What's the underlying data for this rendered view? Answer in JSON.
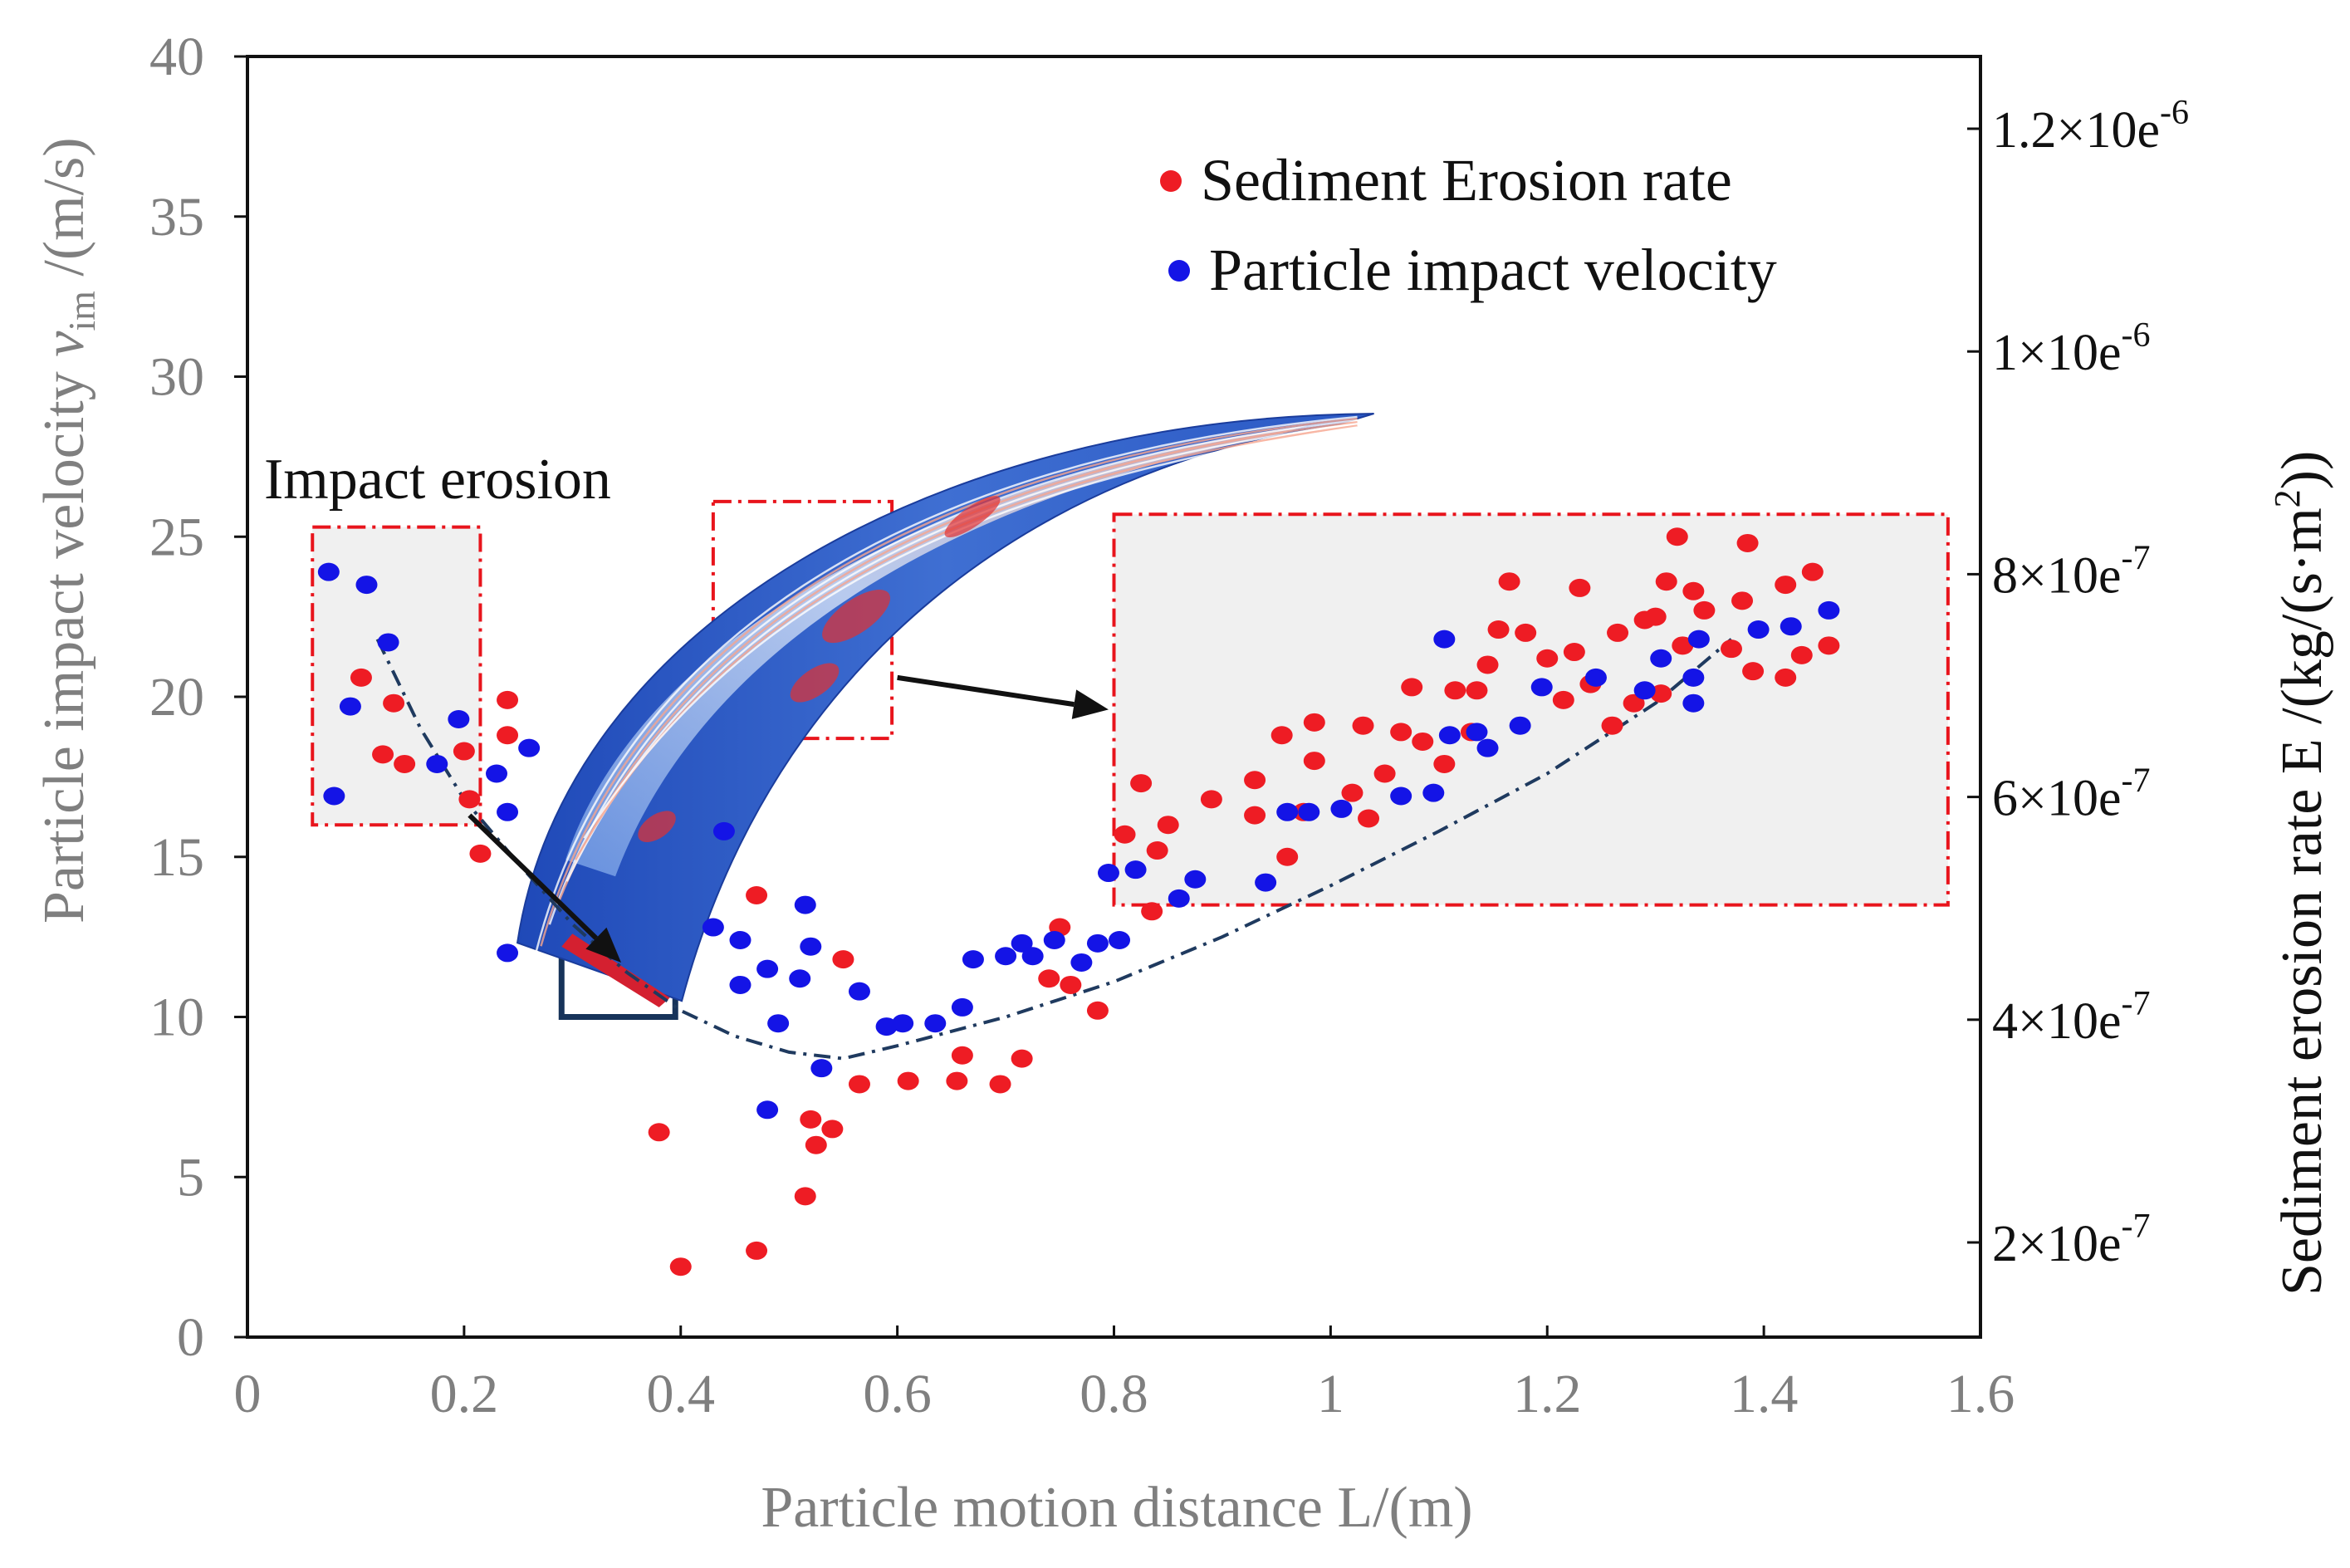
{
  "chart_data": {
    "type": "scatter",
    "xlabel": "Particle motion distance L/(m)",
    "ylabel_main": "Particle impact velocity ",
    "ylabel_symbol": "v",
    "ylabel_subscript": "im",
    "ylabel_unit": " /(m/s)",
    "y2label_main": "Sediment erosion rate E /(kg/(s·m",
    "y2label_sup": "2",
    "y2label_end": "))",
    "xlim": [
      0,
      1.6
    ],
    "ylim": [
      0,
      40
    ],
    "y2lim": [
      1.2e-07,
      1.3e-06
    ],
    "x_ticks": [
      "0",
      "0.2",
      "0.4",
      "0.6",
      "0.8",
      "1",
      "1.2",
      "1.4",
      "1.6"
    ],
    "y_ticks": [
      "0",
      "5",
      "10",
      "15",
      "20",
      "25",
      "30",
      "35",
      "40"
    ],
    "y2_ticks": [
      {
        "base": "2×10e",
        "exp": "-7"
      },
      {
        "base": "4×10e",
        "exp": "-7"
      },
      {
        "base": "6×10e",
        "exp": "-7"
      },
      {
        "base": "8×10e",
        "exp": "-7"
      },
      {
        "base": "1×10e",
        "exp": "-6"
      },
      {
        "base": "1.2×10e",
        "exp": "-6"
      }
    ],
    "y2_tick_values": [
      2e-07,
      4e-07,
      6e-07,
      8e-07,
      1e-06,
      1.2e-06
    ],
    "series": [
      {
        "name": "Sediment Erosion rate",
        "color": "#ee1c24",
        "points": [
          [
            0.105,
            20.6
          ],
          [
            0.135,
            19.8
          ],
          [
            0.125,
            18.2
          ],
          [
            0.145,
            17.9
          ],
          [
            0.2,
            18.3
          ],
          [
            0.205,
            16.8
          ],
          [
            0.215,
            15.1
          ],
          [
            0.24,
            19.9
          ],
          [
            0.24,
            18.8
          ],
          [
            0.38,
            6.4
          ],
          [
            0.4,
            2.2
          ],
          [
            0.47,
            13.8
          ],
          [
            0.47,
            2.7
          ],
          [
            0.515,
            4.4
          ],
          [
            0.52,
            6.8
          ],
          [
            0.525,
            6.0
          ],
          [
            0.54,
            6.5
          ],
          [
            0.55,
            11.8
          ],
          [
            0.565,
            7.9
          ],
          [
            0.61,
            8.0
          ],
          [
            0.655,
            8.0
          ],
          [
            0.66,
            8.8
          ],
          [
            0.695,
            7.9
          ],
          [
            0.715,
            8.7
          ],
          [
            0.74,
            11.2
          ],
          [
            0.75,
            12.8
          ],
          [
            0.76,
            11.0
          ],
          [
            0.785,
            10.2
          ],
          [
            0.81,
            15.7
          ],
          [
            0.825,
            17.3
          ],
          [
            0.835,
            13.3
          ],
          [
            0.84,
            15.2
          ],
          [
            0.85,
            16.0
          ],
          [
            0.89,
            16.8
          ],
          [
            0.93,
            17.4
          ],
          [
            0.93,
            16.3
          ],
          [
            0.955,
            18.8
          ],
          [
            0.96,
            15.0
          ],
          [
            0.975,
            16.4
          ],
          [
            0.985,
            18.0
          ],
          [
            0.985,
            19.2
          ],
          [
            1.02,
            17.0
          ],
          [
            1.03,
            19.1
          ],
          [
            1.035,
            16.2
          ],
          [
            1.05,
            17.6
          ],
          [
            1.065,
            18.9
          ],
          [
            1.075,
            20.3
          ],
          [
            1.085,
            18.6
          ],
          [
            1.105,
            17.9
          ],
          [
            1.115,
            20.2
          ],
          [
            1.13,
            18.9
          ],
          [
            1.135,
            20.2
          ],
          [
            1.145,
            21.0
          ],
          [
            1.155,
            22.1
          ],
          [
            1.165,
            23.6
          ],
          [
            1.18,
            22.0
          ],
          [
            1.2,
            21.2
          ],
          [
            1.215,
            19.9
          ],
          [
            1.225,
            21.4
          ],
          [
            1.23,
            23.4
          ],
          [
            1.24,
            20.4
          ],
          [
            1.26,
            19.1
          ],
          [
            1.265,
            22.0
          ],
          [
            1.28,
            19.8
          ],
          [
            1.29,
            22.4
          ],
          [
            1.3,
            22.5
          ],
          [
            1.305,
            20.1
          ],
          [
            1.31,
            23.6
          ],
          [
            1.32,
            25.0
          ],
          [
            1.325,
            21.6
          ],
          [
            1.335,
            23.3
          ],
          [
            1.345,
            22.7
          ],
          [
            1.37,
            21.5
          ],
          [
            1.38,
            23.0
          ],
          [
            1.385,
            24.8
          ],
          [
            1.39,
            20.8
          ],
          [
            1.42,
            20.6
          ],
          [
            1.42,
            23.5
          ],
          [
            1.435,
            21.3
          ],
          [
            1.445,
            23.9
          ],
          [
            1.46,
            21.6
          ]
        ]
      },
      {
        "name": "Particle impact velocity",
        "color": "#1414e6",
        "points": [
          [
            0.075,
            23.9
          ],
          [
            0.11,
            23.5
          ],
          [
            0.13,
            21.7
          ],
          [
            0.095,
            19.7
          ],
          [
            0.08,
            16.9
          ],
          [
            0.175,
            17.9
          ],
          [
            0.195,
            19.3
          ],
          [
            0.23,
            17.6
          ],
          [
            0.26,
            18.4
          ],
          [
            0.24,
            16.4
          ],
          [
            0.24,
            12.0
          ],
          [
            0.43,
            12.8
          ],
          [
            0.44,
            15.8
          ],
          [
            0.455,
            12.4
          ],
          [
            0.455,
            11.0
          ],
          [
            0.48,
            11.5
          ],
          [
            0.48,
            7.1
          ],
          [
            0.49,
            9.8
          ],
          [
            0.51,
            11.2
          ],
          [
            0.515,
            13.5
          ],
          [
            0.52,
            12.2
          ],
          [
            0.53,
            8.4
          ],
          [
            0.565,
            10.8
          ],
          [
            0.59,
            9.7
          ],
          [
            0.605,
            9.8
          ],
          [
            0.635,
            9.8
          ],
          [
            0.66,
            10.3
          ],
          [
            0.67,
            11.8
          ],
          [
            0.7,
            11.9
          ],
          [
            0.715,
            12.3
          ],
          [
            0.725,
            11.9
          ],
          [
            0.745,
            12.4
          ],
          [
            0.77,
            11.7
          ],
          [
            0.785,
            12.3
          ],
          [
            0.795,
            14.5
          ],
          [
            0.805,
            12.4
          ],
          [
            0.82,
            14.6
          ],
          [
            0.86,
            13.7
          ],
          [
            0.875,
            14.3
          ],
          [
            0.94,
            14.2
          ],
          [
            0.96,
            16.4
          ],
          [
            0.98,
            16.4
          ],
          [
            1.01,
            16.5
          ],
          [
            1.065,
            16.9
          ],
          [
            1.095,
            17.0
          ],
          [
            1.105,
            21.8
          ],
          [
            1.11,
            18.8
          ],
          [
            1.135,
            18.9
          ],
          [
            1.145,
            18.4
          ],
          [
            1.175,
            19.1
          ],
          [
            1.195,
            20.3
          ],
          [
            1.245,
            20.6
          ],
          [
            1.29,
            20.2
          ],
          [
            1.305,
            21.2
          ],
          [
            1.335,
            20.6
          ],
          [
            1.335,
            19.8
          ],
          [
            1.34,
            21.8
          ],
          [
            1.395,
            22.1
          ],
          [
            1.425,
            22.2
          ],
          [
            1.46,
            22.7
          ]
        ]
      }
    ],
    "trend_line": {
      "style": "dash-dot",
      "color": "#1f3a5f",
      "points": [
        [
          0.12,
          21.8
        ],
        [
          0.16,
          19.0
        ],
        [
          0.2,
          16.8
        ],
        [
          0.25,
          14.8
        ],
        [
          0.3,
          12.9
        ],
        [
          0.35,
          11.4
        ],
        [
          0.4,
          10.2
        ],
        [
          0.45,
          9.4
        ],
        [
          0.5,
          8.9
        ],
        [
          0.55,
          8.7
        ],
        [
          0.6,
          9.1
        ],
        [
          0.7,
          10.0
        ],
        [
          0.8,
          11.1
        ],
        [
          0.9,
          12.5
        ],
        [
          1.0,
          14.1
        ],
        [
          1.1,
          15.8
        ],
        [
          1.2,
          17.6
        ],
        [
          1.3,
          19.8
        ],
        [
          1.37,
          21.8
        ]
      ]
    },
    "legend": {
      "placement": "top-right",
      "entries": [
        {
          "label": "Sediment Erosion rate",
          "color": "#ee1c24"
        },
        {
          "label": "Particle impact velocity",
          "color": "#1414e6"
        }
      ]
    },
    "annotations": {
      "impact_erosion_label": "Impact erosion",
      "boxes": [
        {
          "name": "impact-erosion-region",
          "x0": 0.06,
          "x1": 0.215,
          "y0": 16.0,
          "y1": 25.3
        },
        {
          "name": "blade-detail-region",
          "x0": 0.43,
          "x1": 0.595,
          "y0": 18.7,
          "y1": 26.1
        },
        {
          "name": "erosion-rise-region",
          "x0": 0.8,
          "x1": 1.57,
          "y0": 13.5,
          "y1": 25.7
        },
        {
          "name": "blade-leading-edge-box",
          "x0": 0.29,
          "x1": 0.395,
          "y0": 10.0,
          "y1": 13.0
        }
      ],
      "inset_blade": {
        "x0": 0.24,
        "x1": 1.04,
        "y0": 10.5,
        "y1": 29.0
      }
    }
  }
}
